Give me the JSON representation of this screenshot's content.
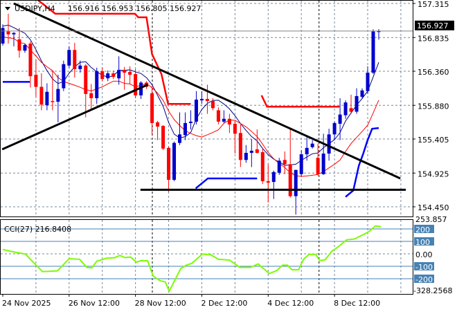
{
  "header": {
    "symbol": "USDJPY,H4",
    "ohlc_text": "156.916 156.953 156.805 156.927",
    "menu_icon": "triangle-down-icon"
  },
  "colors": {
    "bull": "#0000cc",
    "bear": "#ff0000",
    "trendline": "#000000",
    "cci_line": "#7cfc00",
    "cci_level": "#4682b4",
    "grid": "#778899"
  },
  "chart_data": [
    {
      "type": "candlestick",
      "title": "USDJPY,H4",
      "ylim": [
        154.45,
        157.315
      ],
      "y_ticks": [
        "157.315",
        "156.835",
        "156.360",
        "155.880",
        "155.405",
        "154.925",
        "154.450"
      ],
      "y_tick_values": [
        157.315,
        156.835,
        156.36,
        155.88,
        155.405,
        154.925,
        154.45
      ],
      "current_price": "156.927",
      "x_labels": [
        {
          "bar": 0,
          "text": "24 Nov 2025"
        },
        {
          "bar": 12,
          "text": "26 Nov 12:00"
        },
        {
          "bar": 24,
          "text": "28 Nov 12:00"
        },
        {
          "bar": 36,
          "text": "2 Dec 12:00"
        },
        {
          "bar": 48,
          "text": "4 Dec 12:00"
        },
        {
          "bar": 60,
          "text": "8 Dec 12:00"
        }
      ],
      "grid": true,
      "candles_ohlc": [
        [
          156.75,
          157.02,
          156.72,
          156.97
        ],
        [
          156.92,
          157.17,
          156.75,
          156.88
        ],
        [
          156.88,
          156.91,
          156.71,
          156.9
        ],
        [
          156.81,
          156.97,
          156.55,
          156.65
        ],
        [
          156.65,
          156.75,
          156.62,
          156.73
        ],
        [
          156.75,
          156.78,
          156.13,
          156.29
        ],
        [
          156.31,
          156.52,
          156.0,
          156.14
        ],
        [
          156.14,
          156.33,
          155.81,
          155.89
        ],
        [
          155.88,
          156.19,
          155.81,
          156.07
        ],
        [
          155.94,
          156.37,
          155.81,
          155.93
        ],
        [
          155.93,
          156.31,
          155.64,
          156.11
        ],
        [
          156.12,
          156.51,
          156.08,
          156.46
        ],
        [
          156.44,
          156.71,
          156.41,
          156.66
        ],
        [
          156.66,
          156.76,
          156.27,
          156.39
        ],
        [
          156.39,
          156.51,
          156.34,
          156.44
        ],
        [
          156.44,
          156.46,
          155.71,
          156.04
        ],
        [
          156.05,
          156.18,
          155.81,
          155.98
        ],
        [
          155.98,
          156.41,
          155.9,
          156.36
        ],
        [
          156.36,
          156.41,
          156.22,
          156.25
        ],
        [
          156.26,
          156.37,
          156.22,
          156.33
        ],
        [
          156.33,
          156.37,
          156.25,
          156.28
        ],
        [
          156.26,
          156.57,
          156.17,
          156.38
        ],
        [
          156.38,
          156.42,
          156.1,
          156.34
        ],
        [
          156.35,
          156.43,
          156.18,
          156.31
        ],
        [
          156.32,
          156.39,
          155.98,
          156.02
        ],
        [
          156.02,
          156.22,
          155.97,
          156.2
        ],
        [
          156.2,
          156.22,
          156.11,
          156.14
        ],
        [
          156.05,
          156.15,
          155.46,
          155.63
        ],
        [
          155.64,
          155.66,
          155.39,
          155.58
        ],
        [
          155.59,
          155.6,
          155.25,
          155.27
        ],
        [
          155.28,
          155.3,
          154.66,
          154.83
        ],
        [
          154.83,
          155.37,
          154.81,
          155.35
        ],
        [
          155.35,
          155.78,
          155.32,
          155.47
        ],
        [
          155.46,
          155.78,
          155.39,
          155.63
        ],
        [
          155.63,
          155.81,
          155.54,
          155.65
        ],
        [
          155.65,
          156.08,
          155.61,
          155.96
        ],
        [
          155.95,
          156.08,
          155.9,
          155.97
        ],
        [
          155.97,
          156.17,
          155.76,
          155.94
        ],
        [
          155.94,
          155.98,
          155.81,
          155.84
        ],
        [
          155.81,
          155.85,
          155.61,
          155.65
        ],
        [
          155.65,
          155.81,
          155.63,
          155.69
        ],
        [
          155.69,
          155.76,
          155.49,
          155.61
        ],
        [
          155.62,
          155.66,
          155.2,
          155.48
        ],
        [
          155.49,
          155.61,
          155.01,
          155.11
        ],
        [
          155.11,
          155.32,
          155.07,
          155.21
        ],
        [
          155.21,
          155.4,
          155.01,
          155.24
        ],
        [
          155.26,
          155.54,
          155.2,
          155.21
        ],
        [
          155.22,
          155.27,
          154.77,
          154.81
        ],
        [
          154.81,
          155.05,
          154.51,
          154.79
        ],
        [
          154.8,
          154.96,
          154.56,
          154.94
        ],
        [
          154.93,
          155.14,
          154.9,
          155.1
        ],
        [
          155.11,
          155.23,
          154.91,
          155.05
        ],
        [
          155.05,
          155.54,
          154.58,
          154.6
        ],
        [
          154.6,
          154.97,
          154.34,
          154.97
        ],
        [
          154.91,
          155.25,
          154.88,
          155.19
        ],
        [
          155.19,
          155.44,
          155.1,
          155.28
        ],
        [
          155.29,
          155.39,
          155.27,
          155.34
        ],
        [
          155.14,
          155.34,
          154.89,
          154.91
        ],
        [
          154.91,
          155.48,
          154.9,
          155.2
        ],
        [
          155.2,
          155.55,
          155.1,
          155.47
        ],
        [
          155.47,
          155.65,
          155.39,
          155.63
        ],
        [
          155.62,
          155.98,
          155.39,
          155.75
        ],
        [
          155.74,
          155.95,
          155.69,
          155.92
        ],
        [
          155.84,
          156.03,
          155.76,
          155.79
        ],
        [
          155.79,
          156.12,
          155.76,
          156.01
        ],
        [
          156.0,
          156.12,
          155.97,
          156.09
        ],
        [
          156.08,
          156.43,
          156.04,
          156.34
        ],
        [
          156.34,
          156.95,
          156.32,
          156.92
        ],
        [
          156.916,
          156.953,
          156.805,
          156.927
        ]
      ],
      "overlay_lines": [
        {
          "color": "#ff0000",
          "points": [
            [
              6.4,
              157.36
            ],
            [
              9.5,
              157.17
            ],
            [
              23.9,
              157.17
            ],
            [
              24.5,
              157.12
            ],
            [
              26,
              157.12
            ],
            [
              27,
              156.6
            ],
            [
              28.7,
              156.32
            ],
            [
              29.9,
              155.9
            ],
            [
              34,
              155.9
            ]
          ]
        },
        {
          "color": "#ff0000",
          "points": [
            [
              46.8,
              156.02
            ],
            [
              47.8,
              155.86
            ],
            [
              60.9,
              155.86
            ]
          ]
        },
        {
          "color": "#0000ff",
          "points": [
            [
              0,
              156.21
            ],
            [
              4.9,
              156.21
            ]
          ]
        },
        {
          "color": "#0000ff",
          "points": [
            [
              34.9,
              154.71
            ],
            [
              37.1,
              154.85
            ],
            [
              46,
              154.85
            ]
          ]
        },
        {
          "color": "#0000ff",
          "points": [
            [
              62,
              154.59
            ],
            [
              63.4,
              154.68
            ],
            [
              64.4,
              155.03
            ],
            [
              65.2,
              155.2
            ],
            [
              65.9,
              155.37
            ],
            [
              66.8,
              155.55
            ],
            [
              68,
              155.56
            ]
          ]
        }
      ],
      "trendlines": [
        {
          "points": [
            [
              2,
              157.315
            ],
            [
              71.9,
              154.85
            ]
          ]
        },
        {
          "points": [
            [
              -0.1,
              155.26
            ],
            [
              26.2,
              156.17
            ]
          ]
        },
        {
          "points": [
            [
              24.9,
              154.69
            ],
            [
              72.9,
              154.69
            ]
          ]
        }
      ],
      "day_separators": [
        27.05,
        57.2
      ]
    },
    {
      "type": "line",
      "title": "CCI(27) 216.8408",
      "ylim": [
        -328.2568,
        253.857
      ],
      "max_label": "253.857",
      "min_label": "-328.2568",
      "levels": [
        {
          "v": 200,
          "text": "200"
        },
        {
          "v": 100,
          "text": "100"
        },
        {
          "v": -100,
          "text": "-100"
        },
        {
          "v": -200,
          "text": "-200"
        }
      ],
      "zero_label": "0.00",
      "points": [
        [
          0,
          35
        ],
        [
          2.4,
          11
        ],
        [
          4.1,
          -2
        ],
        [
          5.8,
          -81
        ],
        [
          7.2,
          -143
        ],
        [
          9.9,
          -137
        ],
        [
          12,
          -39
        ],
        [
          13.9,
          -44
        ],
        [
          15.2,
          -109
        ],
        [
          16.1,
          -113
        ],
        [
          17,
          -59
        ],
        [
          18.8,
          -35
        ],
        [
          20.2,
          -31
        ],
        [
          21.2,
          -13
        ],
        [
          22.1,
          -30
        ],
        [
          23.1,
          -26
        ],
        [
          24.2,
          -67
        ],
        [
          25,
          -54
        ],
        [
          26.2,
          -56
        ],
        [
          27.2,
          -178
        ],
        [
          28.4,
          -215
        ],
        [
          29.4,
          -226
        ],
        [
          30.1,
          -300
        ],
        [
          32.2,
          -118
        ],
        [
          33.2,
          -91
        ],
        [
          34.2,
          -76
        ],
        [
          36.1,
          -2
        ],
        [
          37.6,
          -7
        ],
        [
          39,
          -44
        ],
        [
          41,
          -50
        ],
        [
          42.9,
          -109
        ],
        [
          44.8,
          -109
        ],
        [
          46.2,
          -81
        ],
        [
          48.2,
          -159
        ],
        [
          49.6,
          -133
        ],
        [
          50.6,
          -91
        ],
        [
          51.5,
          -91
        ],
        [
          52.3,
          -128
        ],
        [
          53.5,
          -128
        ],
        [
          54.4,
          -44
        ],
        [
          55.4,
          -4
        ],
        [
          56.6,
          -4
        ],
        [
          57.3,
          -54
        ],
        [
          58.3,
          -48
        ],
        [
          59.5,
          20
        ],
        [
          60.7,
          57
        ],
        [
          62.2,
          113
        ],
        [
          63.6,
          119
        ],
        [
          65,
          150
        ],
        [
          66.2,
          178
        ],
        [
          67.4,
          224
        ],
        [
          68.4,
          218
        ]
      ]
    }
  ]
}
